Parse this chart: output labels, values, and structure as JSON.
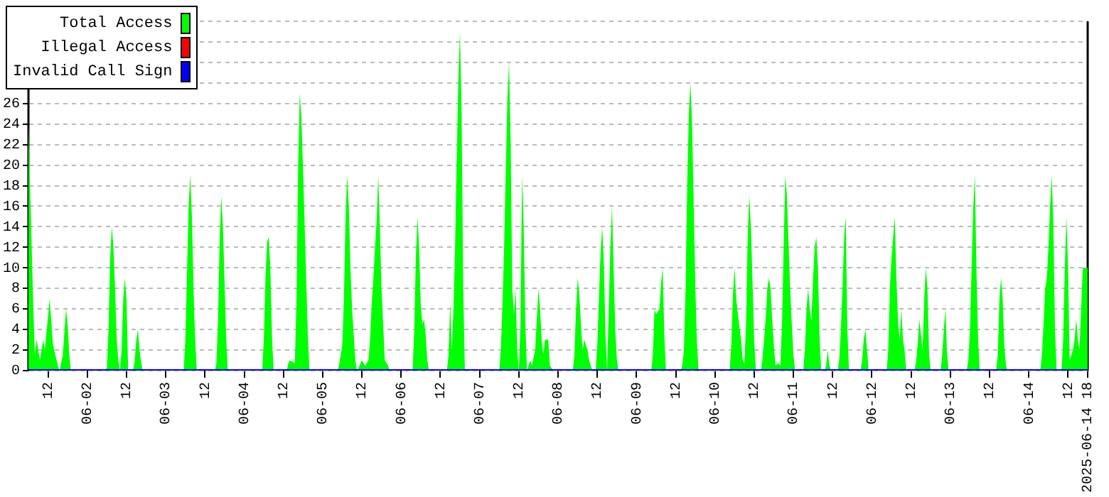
{
  "chart_data": {
    "type": "area",
    "xlim": [
      "2025-06-01T06:00",
      "2025-06-14T18:00"
    ],
    "xticks": [
      {
        "value": "2025-06-01T12:00",
        "label": "12"
      },
      {
        "value": "2025-06-02T00:00",
        "label": "06-02"
      },
      {
        "value": "2025-06-02T12:00",
        "label": "12"
      },
      {
        "value": "2025-06-03T00:00",
        "label": "06-03"
      },
      {
        "value": "2025-06-03T12:00",
        "label": "12"
      },
      {
        "value": "2025-06-04T00:00",
        "label": "06-04"
      },
      {
        "value": "2025-06-04T12:00",
        "label": "12"
      },
      {
        "value": "2025-06-05T00:00",
        "label": "06-05"
      },
      {
        "value": "2025-06-05T12:00",
        "label": "12"
      },
      {
        "value": "2025-06-06T00:00",
        "label": "06-06"
      },
      {
        "value": "2025-06-06T12:00",
        "label": "12"
      },
      {
        "value": "2025-06-07T00:00",
        "label": "06-07"
      },
      {
        "value": "2025-06-07T12:00",
        "label": "12"
      },
      {
        "value": "2025-06-08T00:00",
        "label": "06-08"
      },
      {
        "value": "2025-06-08T12:00",
        "label": "12"
      },
      {
        "value": "2025-06-09T00:00",
        "label": "06-09"
      },
      {
        "value": "2025-06-09T12:00",
        "label": "12"
      },
      {
        "value": "2025-06-10T00:00",
        "label": "06-10"
      },
      {
        "value": "2025-06-10T12:00",
        "label": "12"
      },
      {
        "value": "2025-06-11T00:00",
        "label": "06-11"
      },
      {
        "value": "2025-06-11T12:00",
        "label": "12"
      },
      {
        "value": "2025-06-12T00:00",
        "label": "06-12"
      },
      {
        "value": "2025-06-12T12:00",
        "label": "12"
      },
      {
        "value": "2025-06-13T00:00",
        "label": "06-13"
      },
      {
        "value": "2025-06-13T12:00",
        "label": "12"
      },
      {
        "value": "2025-06-14T00:00",
        "label": "06-14"
      },
      {
        "value": "2025-06-14T12:00",
        "label": "12"
      },
      {
        "value": "2025-06-14T18:00",
        "label": "2025-06-14 18"
      }
    ],
    "ylim": [
      0,
      34
    ],
    "yticks": [
      0,
      2,
      4,
      6,
      8,
      10,
      12,
      14,
      16,
      18,
      20,
      22,
      24,
      26,
      {
        "value": 28,
        "label": null
      },
      {
        "value": 30,
        "label": null
      },
      {
        "value": 32,
        "label": null
      },
      {
        "value": 34,
        "label": null
      }
    ],
    "grid": "y",
    "legend": "top left",
    "series": [
      {
        "name": "Total Access",
        "color": "#00ff00",
        "x": [
          "2025-06-01T06:00",
          "2025-06-01T06:30",
          "2025-06-01T07:30",
          "2025-06-01T08:00",
          "2025-06-01T08:30",
          "2025-06-01T09:30",
          "2025-06-01T10:30",
          "2025-06-01T11:00",
          "2025-06-01T12:30",
          "2025-06-01T13:30",
          "2025-06-01T15:00",
          "2025-06-01T15:30",
          "2025-06-01T16:30",
          "2025-06-01T17:30",
          "2025-06-01T18:00",
          "2025-06-01T18:30",
          "2025-06-01T19:00",
          "2025-06-02T05:30",
          "2025-06-02T06:00",
          "2025-06-02T06:30",
          "2025-06-02T07:00",
          "2025-06-02T07:30",
          "2025-06-02T08:00",
          "2025-06-02T08:30",
          "2025-06-02T09:00",
          "2025-06-02T09:30",
          "2025-06-02T10:00",
          "2025-06-02T10:30",
          "2025-06-02T11:00",
          "2025-06-02T11:30",
          "2025-06-02T12:00",
          "2025-06-02T12:30",
          "2025-06-02T14:00",
          "2025-06-02T14:30",
          "2025-06-02T15:00",
          "2025-06-02T15:30",
          "2025-06-02T16:00",
          "2025-06-02T16:30",
          "2025-06-02T17:00",
          "2025-06-03T05:30",
          "2025-06-03T06:00",
          "2025-06-03T06:30",
          "2025-06-03T07:00",
          "2025-06-03T07:30",
          "2025-06-03T08:00",
          "2025-06-03T08:30",
          "2025-06-03T09:00",
          "2025-06-03T09:30",
          "2025-06-03T15:00",
          "2025-06-03T15:30",
          "2025-06-03T16:00",
          "2025-06-03T16:30",
          "2025-06-03T17:00",
          "2025-06-03T17:30",
          "2025-06-03T18:00",
          "2025-06-03T18:30",
          "2025-06-03T19:00",
          "2025-06-04T05:30",
          "2025-06-04T06:00",
          "2025-06-04T06:30",
          "2025-06-04T07:00",
          "2025-06-04T07:30",
          "2025-06-04T08:00",
          "2025-06-04T08:30",
          "2025-06-04T09:00",
          "2025-06-04T13:00",
          "2025-06-04T13:30",
          "2025-06-04T14:00",
          "2025-06-04T15:30",
          "2025-06-04T16:00",
          "2025-06-04T16:30",
          "2025-06-04T17:00",
          "2025-06-04T17:30",
          "2025-06-04T18:00",
          "2025-06-04T18:30",
          "2025-06-04T19:00",
          "2025-06-04T19:30",
          "2025-06-04T20:00",
          "2025-06-05T04:30",
          "2025-06-05T05:00",
          "2025-06-05T05:30",
          "2025-06-05T06:00",
          "2025-06-05T06:30",
          "2025-06-05T07:00",
          "2025-06-05T07:30",
          "2025-06-05T08:00",
          "2025-06-05T08:30",
          "2025-06-05T09:00",
          "2025-06-05T09:30",
          "2025-06-05T10:00",
          "2025-06-05T10:30",
          "2025-06-05T11:00",
          "2025-06-05T12:00",
          "2025-06-05T13:00",
          "2025-06-05T14:00",
          "2025-06-05T14:30",
          "2025-06-05T15:00",
          "2025-06-05T15:30",
          "2025-06-05T16:00",
          "2025-06-05T16:30",
          "2025-06-05T17:00",
          "2025-06-05T17:30",
          "2025-06-05T18:00",
          "2025-06-05T18:30",
          "2025-06-05T19:00",
          "2025-06-05T20:00",
          "2025-06-05T20:30",
          "2025-06-06T03:30",
          "2025-06-06T04:00",
          "2025-06-06T04:30",
          "2025-06-06T05:00",
          "2025-06-06T05:30",
          "2025-06-06T06:00",
          "2025-06-06T06:30",
          "2025-06-06T07:00",
          "2025-06-06T07:30",
          "2025-06-06T08:00",
          "2025-06-06T08:30",
          "2025-06-06T14:00",
          "2025-06-06T14:30",
          "2025-06-06T15:00",
          "2025-06-06T15:30",
          "2025-06-06T16:00",
          "2025-06-06T16:30",
          "2025-06-06T17:00",
          "2025-06-06T17:30",
          "2025-06-06T18:00",
          "2025-06-06T18:30",
          "2025-06-06T19:00",
          "2025-06-06T19:30",
          "2025-06-07T06:00",
          "2025-06-07T06:30",
          "2025-06-07T07:00",
          "2025-06-07T07:30",
          "2025-06-07T08:00",
          "2025-06-07T08:30",
          "2025-06-07T09:00",
          "2025-06-07T09:30",
          "2025-06-07T10:00",
          "2025-06-07T10:30",
          "2025-06-07T11:00",
          "2025-06-07T11:30",
          "2025-06-07T12:00",
          "2025-06-07T12:30",
          "2025-06-07T13:00",
          "2025-06-07T13:30",
          "2025-06-07T14:00",
          "2025-06-07T14:30",
          "2025-06-07T15:00",
          "2025-06-07T15:30",
          "2025-06-07T16:00",
          "2025-06-07T17:00",
          "2025-06-07T17:30",
          "2025-06-07T18:00",
          "2025-06-07T18:30",
          "2025-06-07T19:00",
          "2025-06-07T19:30",
          "2025-06-07T20:00",
          "2025-06-07T21:00",
          "2025-06-07T21:30",
          "2025-06-07T22:30",
          "2025-06-08T04:30",
          "2025-06-08T05:00",
          "2025-06-08T05:30",
          "2025-06-08T06:00",
          "2025-06-08T06:30",
          "2025-06-08T07:00",
          "2025-06-08T07:30",
          "2025-06-08T08:00",
          "2025-06-08T09:00",
          "2025-06-08T09:30",
          "2025-06-08T10:30",
          "2025-06-08T11:30",
          "2025-06-08T12:00",
          "2025-06-08T12:30",
          "2025-06-08T13:00",
          "2025-06-08T13:30",
          "2025-06-08T14:00",
          "2025-06-08T14:30",
          "2025-06-08T15:00",
          "2025-06-08T15:30",
          "2025-06-08T16:00",
          "2025-06-08T16:30",
          "2025-06-08T17:00",
          "2025-06-08T17:30",
          "2025-06-08T18:00",
          "2025-06-08T18:30",
          "2025-06-09T04:30",
          "2025-06-09T05:00",
          "2025-06-09T05:30",
          "2025-06-09T06:00",
          "2025-06-09T07:00",
          "2025-06-09T07:30",
          "2025-06-09T08:00",
          "2025-06-09T08:30",
          "2025-06-09T09:00",
          "2025-06-09T13:30",
          "2025-06-09T14:00",
          "2025-06-09T14:30",
          "2025-06-09T15:00",
          "2025-06-09T15:30",
          "2025-06-09T16:00",
          "2025-06-09T16:30",
          "2025-06-09T17:00",
          "2025-06-09T17:30",
          "2025-06-09T18:00",
          "2025-06-09T18:30",
          "2025-06-09T19:00",
          "2025-06-10T04:30",
          "2025-06-10T05:00",
          "2025-06-10T05:30",
          "2025-06-10T06:00",
          "2025-06-10T06:30",
          "2025-06-10T07:00",
          "2025-06-10T08:00",
          "2025-06-10T08:30",
          "2025-06-10T09:00",
          "2025-06-10T09:30",
          "2025-06-10T10:00",
          "2025-06-10T10:30",
          "2025-06-10T11:00",
          "2025-06-10T11:30",
          "2025-06-10T12:00",
          "2025-06-10T12:30",
          "2025-06-10T14:00",
          "2025-06-10T14:30",
          "2025-06-10T15:00",
          "2025-06-10T15:30",
          "2025-06-10T16:00",
          "2025-06-10T16:30",
          "2025-06-10T17:00",
          "2025-06-10T17:30",
          "2025-06-10T18:00",
          "2025-06-10T18:30",
          "2025-06-10T19:30",
          "2025-06-10T20:00",
          "2025-06-10T20:30",
          "2025-06-10T21:00",
          "2025-06-10T21:30",
          "2025-06-10T22:00",
          "2025-06-10T22:30",
          "2025-06-10T23:00",
          "2025-06-10T23:30",
          "2025-06-11T00:00",
          "2025-06-11T00:30",
          "2025-06-11T03:00",
          "2025-06-11T03:30",
          "2025-06-11T04:00",
          "2025-06-11T04:30",
          "2025-06-11T05:00",
          "2025-06-11T05:30",
          "2025-06-11T06:00",
          "2025-06-11T06:30",
          "2025-06-11T07:00",
          "2025-06-11T07:30",
          "2025-06-11T08:00",
          "2025-06-11T08:30",
          "2025-06-11T09:30",
          "2025-06-11T10:00",
          "2025-06-11T10:30",
          "2025-06-11T11:00",
          "2025-06-11T11:30",
          "2025-06-11T13:30",
          "2025-06-11T14:00",
          "2025-06-11T14:30",
          "2025-06-11T15:00",
          "2025-06-11T15:30",
          "2025-06-11T16:00",
          "2025-06-11T16:30",
          "2025-06-11T17:00",
          "2025-06-11T20:30",
          "2025-06-11T21:00",
          "2025-06-11T21:30",
          "2025-06-11T22:00",
          "2025-06-11T22:30",
          "2025-06-11T23:00",
          "2025-06-12T04:30",
          "2025-06-12T05:00",
          "2025-06-12T05:30",
          "2025-06-12T06:00",
          "2025-06-12T06:30",
          "2025-06-12T07:00",
          "2025-06-12T07:30",
          "2025-06-12T08:00",
          "2025-06-12T08:30",
          "2025-06-12T09:00",
          "2025-06-12T09:30",
          "2025-06-12T10:00",
          "2025-06-12T10:30",
          "2025-06-12T13:00",
          "2025-06-12T13:30",
          "2025-06-12T14:00",
          "2025-06-12T14:30",
          "2025-06-12T15:00",
          "2025-06-12T15:30",
          "2025-06-12T16:00",
          "2025-06-12T16:30",
          "2025-06-12T17:00",
          "2025-06-12T17:30",
          "2025-06-12T18:00",
          "2025-06-12T21:00",
          "2025-06-12T21:30",
          "2025-06-12T22:00",
          "2025-06-12T22:30",
          "2025-06-12T23:00",
          "2025-06-12T23:30",
          "2025-06-13T05:00",
          "2025-06-13T05:30",
          "2025-06-13T06:00",
          "2025-06-13T06:30",
          "2025-06-13T07:00",
          "2025-06-13T07:30",
          "2025-06-13T08:00",
          "2025-06-13T08:30",
          "2025-06-13T09:00",
          "2025-06-13T14:00",
          "2025-06-13T14:30",
          "2025-06-13T15:00",
          "2025-06-13T15:30",
          "2025-06-13T16:00",
          "2025-06-13T16:30",
          "2025-06-13T17:00",
          "2025-06-13T17:30",
          "2025-06-14T03:30",
          "2025-06-14T04:00",
          "2025-06-14T04:30",
          "2025-06-14T05:00",
          "2025-06-14T05:30",
          "2025-06-14T06:00",
          "2025-06-14T06:30",
          "2025-06-14T07:00",
          "2025-06-14T07:30",
          "2025-06-14T08:00",
          "2025-06-14T08:30",
          "2025-06-14T10:00",
          "2025-06-14T10:30",
          "2025-06-14T11:00",
          "2025-06-14T11:30",
          "2025-06-14T12:00",
          "2025-06-14T12:30",
          "2025-06-14T13:30",
          "2025-06-14T14:00",
          "2025-06-14T14:30",
          "2025-06-14T15:00",
          "2025-06-14T15:30",
          "2025-06-14T16:00",
          "2025-06-14T16:30",
          "2025-06-14T18:00"
        ],
        "values": [
          24,
          18,
          6,
          1.5,
          3,
          1,
          3,
          2,
          7,
          2.5,
          0.5,
          0,
          1.5,
          6,
          4.5,
          1.5,
          0,
          0,
          0.3,
          4,
          11,
          14,
          12,
          8,
          3,
          1,
          0,
          2,
          7,
          9,
          7,
          0,
          0,
          1,
          3,
          4,
          2,
          0.7,
          0,
          0,
          3,
          9.5,
          16,
          19,
          15,
          8,
          3,
          0,
          0,
          0.7,
          5,
          13,
          17,
          14,
          8.5,
          3,
          0,
          0,
          3,
          9,
          12.5,
          13,
          10,
          3.3,
          0,
          0,
          0.7,
          1,
          0.7,
          7,
          20,
          27,
          24.5,
          19.5,
          14,
          8.5,
          3,
          0,
          0,
          0.5,
          1.5,
          2.5,
          7,
          15,
          19,
          16,
          10,
          6,
          3.5,
          1,
          0,
          0.3,
          1,
          0.5,
          1,
          3,
          6.5,
          9,
          12,
          14.5,
          19,
          14,
          8,
          4.5,
          1,
          0.5,
          0,
          0,
          3.8,
          11,
          15,
          12,
          6.5,
          4.5,
          5,
          3.5,
          1,
          0,
          0,
          1.5,
          6.5,
          2,
          6,
          12,
          20.5,
          28.5,
          33,
          25,
          8,
          0,
          0,
          2,
          6.5,
          12,
          19.5,
          26.5,
          30,
          22.5,
          8,
          5.5,
          8,
          2,
          0,
          4.5,
          19,
          14,
          4.5,
          0,
          0.5,
          1,
          0.5,
          2,
          5,
          8,
          6,
          3,
          1.5,
          3,
          3,
          0.5,
          0,
          0,
          1.5,
          6,
          9,
          7.5,
          4.5,
          2,
          3,
          2,
          1,
          0,
          0,
          2.5,
          7,
          11.5,
          14,
          10.5,
          3.5,
          0,
          6,
          12,
          16,
          10,
          4,
          1,
          0,
          0,
          1.5,
          6,
          5.5,
          6,
          8.5,
          10,
          3.5,
          0,
          0,
          0.5,
          2,
          8,
          18,
          25,
          28,
          24,
          16,
          8,
          2.5,
          0,
          0,
          2.5,
          7.5,
          10,
          7,
          5.5,
          3,
          1,
          0.7,
          4.5,
          13,
          17,
          14,
          8.5,
          3,
          0,
          0,
          1,
          3,
          5,
          8,
          9,
          8,
          5,
          2.5,
          0.5,
          0.7,
          0.5,
          4.5,
          12,
          19,
          17,
          12.5,
          8,
          4.5,
          1.5,
          0,
          0,
          2,
          6,
          8,
          6,
          4.8,
          9,
          12,
          13,
          10,
          3.2,
          0,
          0,
          0.5,
          2,
          0.5,
          0,
          0,
          1,
          4,
          8,
          13,
          15,
          4,
          0,
          0,
          1,
          3,
          4,
          2,
          0,
          0,
          2,
          8,
          11,
          13,
          15,
          9,
          4.8,
          3,
          6,
          3,
          2,
          0,
          0,
          0.8,
          2.5,
          5,
          3.5,
          2,
          7,
          10,
          8,
          1.5,
          0,
          0,
          1.5,
          4,
          6,
          1.5,
          0,
          0,
          1,
          4,
          10,
          16,
          19,
          9.5,
          3,
          0,
          0,
          1.5,
          7,
          9,
          7,
          2.5,
          0.5,
          0,
          0,
          1.5,
          4.5,
          8,
          9,
          12,
          16,
          19,
          14.5,
          4,
          0,
          0,
          3,
          10,
          15,
          10,
          1,
          2,
          3,
          5,
          3,
          2,
          6,
          10,
          10
        ]
      },
      {
        "name": "Illegal Access",
        "color": "#ff0000"
      },
      {
        "name": "Invalid Call Sign",
        "color": "#0000ff",
        "type": "line",
        "x": [
          "2025-06-01T06:00",
          "2025-06-14T18:00"
        ],
        "values": [
          0,
          0
        ]
      }
    ]
  }
}
